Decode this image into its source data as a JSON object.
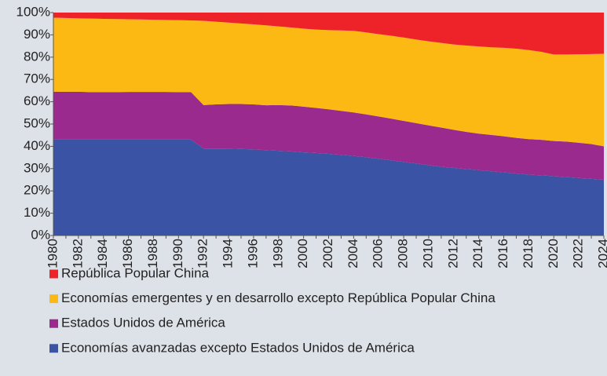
{
  "chart_data": {
    "type": "stacked_area",
    "categories": [
      "1980",
      null,
      "1982",
      null,
      "1984",
      null,
      "1986",
      null,
      "1988",
      null,
      "1990",
      null,
      "1992",
      null,
      "1994",
      null,
      "1996",
      null,
      "1998",
      null,
      "2000",
      null,
      "2002",
      null,
      "2004",
      null,
      "2006",
      null,
      "2008",
      null,
      "2010",
      null,
      "2012",
      null,
      "2014",
      null,
      "2016",
      null,
      "2018",
      null,
      "2020",
      null,
      "2022",
      null,
      "2024"
    ],
    "series": [
      {
        "name": "Economías avanzadas excepto Estados Unidos de América",
        "color": "#3a53a4",
        "values": [
          43,
          43,
          43,
          43,
          43,
          43,
          43,
          43,
          43,
          43,
          43,
          43,
          39,
          39,
          39,
          38.8,
          38.6,
          38.3,
          38,
          37.7,
          37.3,
          37,
          36.6,
          36.2,
          35.7,
          35.1,
          34.4,
          33.7,
          33,
          32.3,
          31.5,
          30.8,
          30.3,
          29.8,
          29.3,
          28.8,
          28.3,
          27.8,
          27.3,
          27,
          26.6,
          26.2,
          25.8,
          25.4,
          25
        ]
      },
      {
        "name": "Estados Unidos de América",
        "color": "#9b2a8f",
        "values": [
          21.5,
          21.5,
          21.5,
          21.3,
          21.3,
          21.3,
          21.4,
          21.4,
          21.4,
          21.4,
          21.3,
          21.3,
          19.5,
          19.8,
          20,
          20.2,
          20.2,
          20.1,
          20.5,
          20.6,
          20.5,
          20.2,
          20,
          19.7,
          19.5,
          19.2,
          19,
          18.7,
          18.4,
          18.1,
          17.9,
          17.6,
          17.1,
          16.7,
          16.4,
          16.3,
          16.2,
          16,
          15.9,
          15.9,
          15.8,
          15.9,
          15.8,
          15.6,
          15
        ]
      },
      {
        "name": "Economías emergentes y en desarrollo excepto República Popular China",
        "color": "#fdb913",
        "values": [
          33.2,
          33.1,
          32.9,
          33,
          32.9,
          32.8,
          32.6,
          32.5,
          32.4,
          32.3,
          32.3,
          32.2,
          37.8,
          37.1,
          36.5,
          36.1,
          35.9,
          35.9,
          35.3,
          35,
          35,
          35.2,
          35.5,
          36.1,
          36.6,
          36.8,
          36.9,
          37.2,
          37.4,
          37.5,
          37.7,
          38,
          38.3,
          38.7,
          39.1,
          39.3,
          39.7,
          40,
          40,
          39.5,
          38.8,
          39.1,
          39.7,
          40.4,
          41.5
        ]
      },
      {
        "name": "República Popular China",
        "color": "#ee2229",
        "values": [
          2.3,
          2.4,
          2.6,
          2.7,
          2.8,
          2.9,
          3,
          3.1,
          3.2,
          3.3,
          3.4,
          3.5,
          3.7,
          4.1,
          4.5,
          4.9,
          5.3,
          5.7,
          6.2,
          6.7,
          7.2,
          7.6,
          7.9,
          8,
          8.2,
          8.9,
          9.7,
          10.4,
          11.2,
          12.1,
          12.9,
          13.6,
          14.3,
          14.8,
          15.2,
          15.6,
          15.8,
          16.2,
          16.8,
          17.6,
          18.8,
          18.8,
          18.7,
          18.6,
          18.5
        ]
      }
    ],
    "ylim": [
      0,
      100
    ],
    "yticks": [
      {
        "value": 0,
        "label": "0%"
      },
      {
        "value": 10,
        "label": "10%"
      },
      {
        "value": 20,
        "label": "20%"
      },
      {
        "value": 30,
        "label": "30%"
      },
      {
        "value": 40,
        "label": "40%"
      },
      {
        "value": 50,
        "label": "50%"
      },
      {
        "value": 60,
        "label": "60%"
      },
      {
        "value": 70,
        "label": "70%"
      },
      {
        "value": 80,
        "label": "80%"
      },
      {
        "value": 90,
        "label": "90%"
      },
      {
        "value": 100,
        "label": "100%"
      }
    ],
    "legend": "bottom"
  }
}
